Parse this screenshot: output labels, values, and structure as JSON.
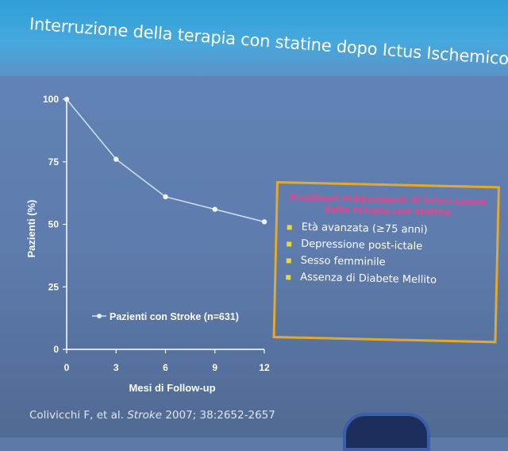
{
  "slide": {
    "title": "Interruzione della terapia con statine dopo Ictus Ischemico",
    "citation_authors": "Colivicchi F, et al.",
    "citation_journal": "Stroke",
    "citation_rest": "2007; 38:2652-2657"
  },
  "predictors": {
    "title": "Predittori indipendenti di interruzione della terapia con statine",
    "items": [
      {
        "label": "Età avanzata (≥75 anni)"
      },
      {
        "label": "Depressione post-ictale"
      },
      {
        "label": "Sesso femminile"
      },
      {
        "label": "Assenza di Diabete Mellito"
      }
    ]
  },
  "colors": {
    "series": "#cfe3f6",
    "axis": "#ffffff",
    "box_border": "#e3a92a",
    "box_title": "#e8428c",
    "bullet": "#e8d93a"
  },
  "chart_data": {
    "type": "line",
    "title": "",
    "xlabel": "Mesi di Follow-up",
    "ylabel": "Pazienti (%)",
    "xlim": [
      0,
      12
    ],
    "ylim": [
      0,
      100
    ],
    "xticks": [
      0,
      3,
      6,
      9,
      12
    ],
    "yticks": [
      0,
      25,
      50,
      75,
      100
    ],
    "grid": false,
    "legend": "bottom-left",
    "series": [
      {
        "name": "Pazienti con Stroke (n=631)",
        "x": [
          0,
          3,
          6,
          9,
          12
        ],
        "y": [
          100,
          76,
          61,
          56,
          51
        ]
      }
    ]
  }
}
